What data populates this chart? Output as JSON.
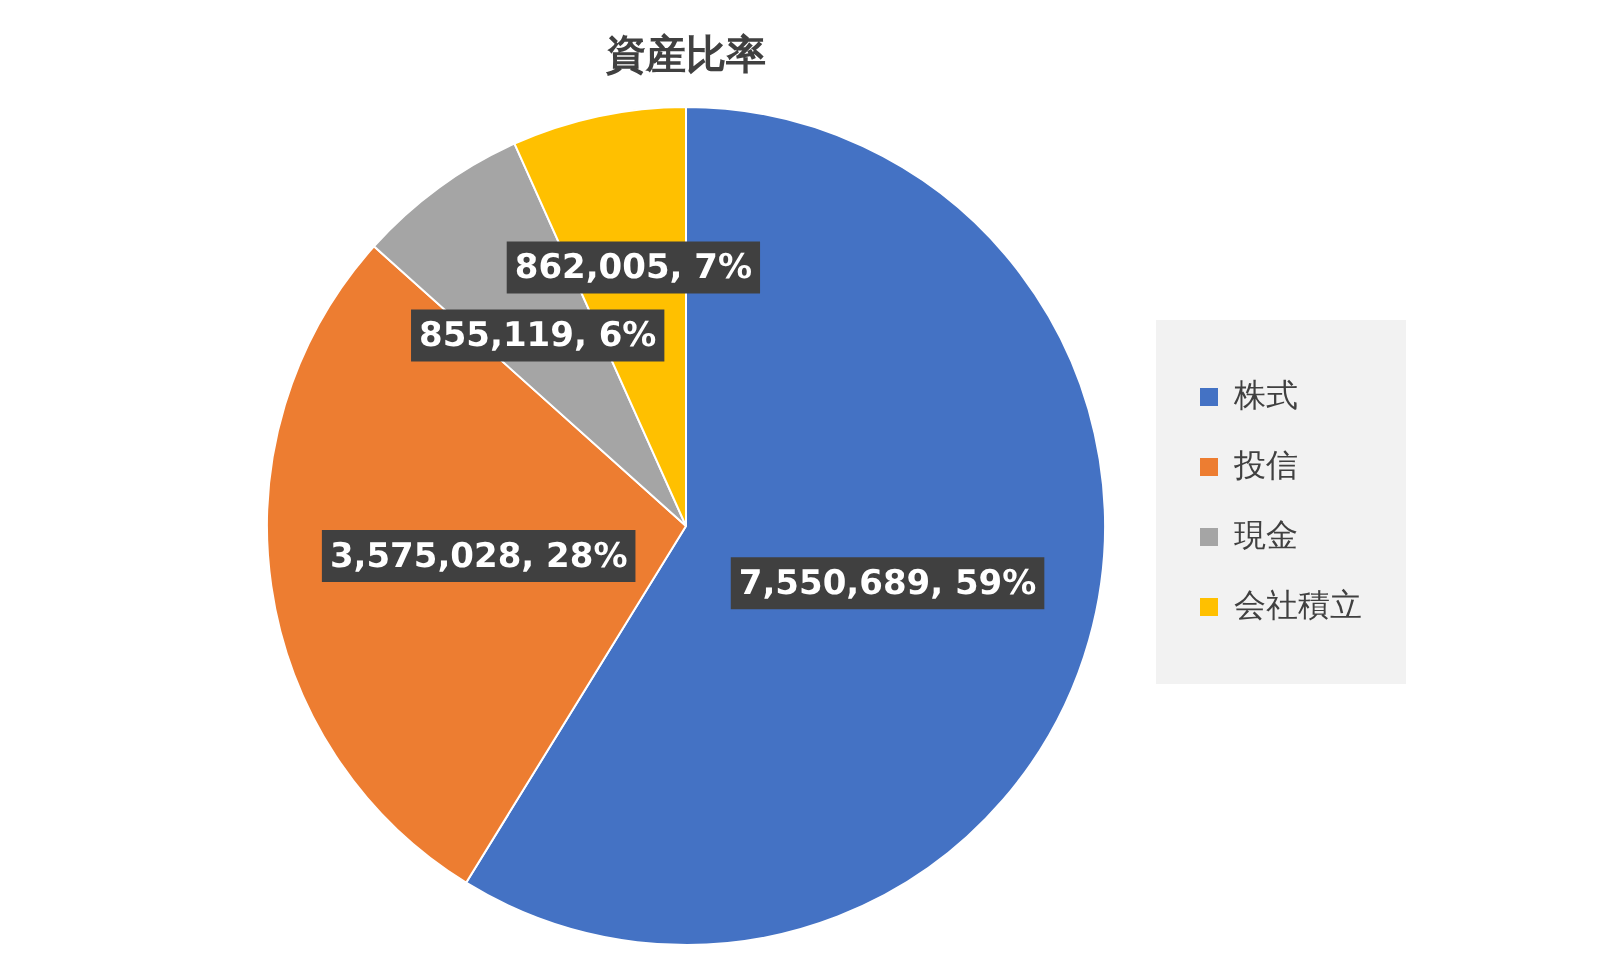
{
  "chart_data": {
    "type": "pie",
    "title": "資産比率",
    "categories": [
      "株式",
      "投信",
      "現金",
      "会社積立"
    ],
    "values": [
      7550689,
      3575028,
      855119,
      862005
    ],
    "colors": [
      "#4472c4",
      "#ed7d31",
      "#a5a5a5",
      "#ffc000"
    ],
    "value_labels": [
      "7,550,689, 59%",
      "3,575,028, 28%",
      "855,119, 6%",
      "862,005, 7%"
    ],
    "legend": "right"
  }
}
